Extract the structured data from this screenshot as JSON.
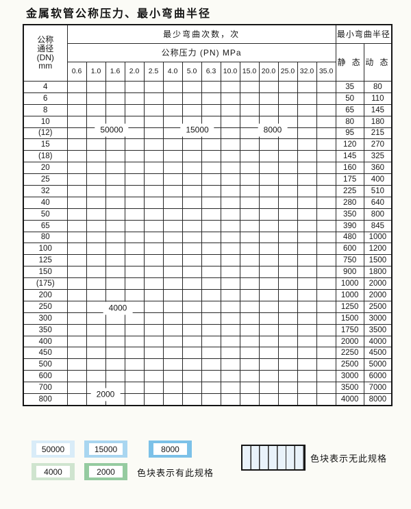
{
  "title": "金属软管公称压力、最小弯曲半径",
  "colors": {
    "cycles_50000": "#d9ecf8",
    "cycles_15000": "#a9d6f0",
    "cycles_8000": "#7cc1e8",
    "cycles_4000": "#cfe4cf",
    "cycles_2000": "#95cba0",
    "no_spec_bg": "#eef4f9",
    "dn_column_bg": "#e7f1f9"
  },
  "table": {
    "dn_header_lines": [
      "公称",
      "通径",
      "(DN)",
      "mm"
    ],
    "bend_cycles_header": "最少弯曲次数，次",
    "pressure_header": "公称压力 (PN) MPa",
    "radius_header": "最小弯曲半径",
    "static_header": "静 态",
    "dynamic_header": "动 态",
    "pressure_columns": [
      "0.6",
      "1.0",
      "1.6",
      "2.0",
      "2.5",
      "4.0",
      "5.0",
      "6.3",
      "10.0",
      "15.0",
      "20.0",
      "25.0",
      "32.0",
      "35.0"
    ],
    "cell_code_legend": {
      "A": "50000",
      "B": "15000",
      "C": "8000",
      "D": "4000",
      "E": "2000",
      "-": "no-spec"
    },
    "rows": [
      {
        "dn": "4",
        "cells": "AAAAABBBBCCCCC",
        "static": "35",
        "dynamic": "80"
      },
      {
        "dn": "6",
        "cells": "AAAAABBBBCCC--",
        "static": "50",
        "dynamic": "110"
      },
      {
        "dn": "8",
        "cells": "AAAAABBBBCCC--",
        "static": "65",
        "dynamic": "145"
      },
      {
        "dn": "10",
        "cells": "AAAAABBBBCCC--",
        "static": "80",
        "dynamic": "180"
      },
      {
        "dn": "(12)",
        "cells": "AAAAABBBBCCC--",
        "static": "95",
        "dynamic": "215"
      },
      {
        "dn": "15",
        "cells": "AAAAABBBBCCC--",
        "static": "120",
        "dynamic": "270"
      },
      {
        "dn": "(18)",
        "cells": "AAAAABBBBCC---",
        "static": "145",
        "dynamic": "325"
      },
      {
        "dn": "20",
        "cells": "AAAAABBBBCC---",
        "static": "160",
        "dynamic": "360"
      },
      {
        "dn": "25",
        "cells": "AAAAABBBBC----",
        "static": "175",
        "dynamic": "400"
      },
      {
        "dn": "32",
        "cells": "AAAAABCCC-----",
        "static": "225",
        "dynamic": "510"
      },
      {
        "dn": "40",
        "cells": "AAAAABCCC-----",
        "static": "280",
        "dynamic": "640"
      },
      {
        "dn": "50",
        "cells": "AABBBBCC------",
        "static": "350",
        "dynamic": "800"
      },
      {
        "dn": "65",
        "cells": "AABBBBCC------",
        "static": "390",
        "dynamic": "845"
      },
      {
        "dn": "80",
        "cells": "AABBBBCC------",
        "static": "480",
        "dynamic": "1000"
      },
      {
        "dn": "100",
        "cells": "DDDDDD--------",
        "static": "600",
        "dynamic": "1200"
      },
      {
        "dn": "125",
        "cells": "DDDDDD--------",
        "static": "750",
        "dynamic": "1500"
      },
      {
        "dn": "150",
        "cells": "DDDDDD--------",
        "static": "900",
        "dynamic": "1800"
      },
      {
        "dn": "(175)",
        "cells": "DDDDDD--------",
        "static": "1000",
        "dynamic": "2000"
      },
      {
        "dn": "200",
        "cells": "DDDDDD--------",
        "static": "1000",
        "dynamic": "2000"
      },
      {
        "dn": "250",
        "cells": "DDDDDD--------",
        "static": "1250",
        "dynamic": "2500"
      },
      {
        "dn": "300",
        "cells": "DDDDDD--------",
        "static": "1500",
        "dynamic": "3000"
      },
      {
        "dn": "350",
        "cells": "DDDDDD--------",
        "static": "1750",
        "dynamic": "3500"
      },
      {
        "dn": "400",
        "cells": "EEEEE---------",
        "static": "2000",
        "dynamic": "4000"
      },
      {
        "dn": "450",
        "cells": "EEEEE---------",
        "static": "2250",
        "dynamic": "4500"
      },
      {
        "dn": "500",
        "cells": "EEEEE---------",
        "static": "2500",
        "dynamic": "5000"
      },
      {
        "dn": "600",
        "cells": "EEEE----------",
        "static": "3000",
        "dynamic": "6000"
      },
      {
        "dn": "700",
        "cells": "EEE-----------",
        "static": "3500",
        "dynamic": "7000"
      },
      {
        "dn": "800",
        "cells": "EEE-----------",
        "static": "4000",
        "dynamic": "8000"
      }
    ],
    "zone_labels": [
      "50000",
      "15000",
      "8000",
      "4000",
      "2000"
    ]
  },
  "legend": {
    "spec_swatches": [
      {
        "value": "50000",
        "key": "A"
      },
      {
        "value": "15000",
        "key": "B"
      },
      {
        "value": "8000",
        "key": "C"
      },
      {
        "value": "4000",
        "key": "D"
      },
      {
        "value": "2000",
        "key": "E"
      }
    ],
    "has_spec_text": "色块表示有此规格",
    "no_spec_text": "色块表示无此规格"
  }
}
